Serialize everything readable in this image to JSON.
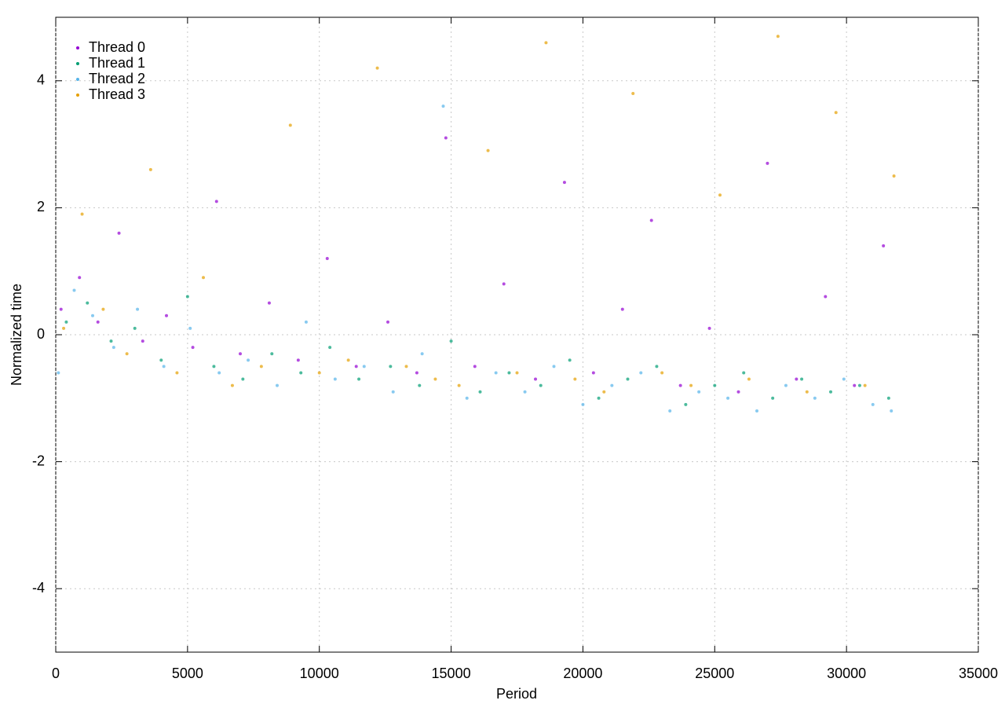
{
  "chart_data": {
    "type": "scatter",
    "x_label": "Period",
    "y_label": "Normalized time",
    "xlim": [
      0,
      35000
    ],
    "xticks": [
      0,
      5000,
      10000,
      15000,
      20000,
      25000,
      30000,
      35000
    ],
    "ylim": [
      -5,
      5
    ],
    "yticks": [
      -4,
      -2,
      0,
      2,
      4
    ],
    "grid": true,
    "legend": "top-left",
    "series": [
      {
        "name": "Thread 0",
        "color": "#9400d3",
        "x": [
          200,
          900,
          1600,
          2400,
          3300,
          4200,
          5200,
          6100,
          7000,
          8100,
          9200,
          10300,
          11400,
          12600,
          13700,
          14800,
          15900,
          17000,
          18200,
          19300,
          20400,
          21500,
          22600,
          23700,
          24800,
          25900,
          27000,
          28100,
          29200,
          30300,
          31400
        ],
        "values": [
          0.4,
          0.9,
          0.2,
          1.6,
          -0.1,
          0.3,
          -0.2,
          2.1,
          -0.3,
          0.5,
          -0.4,
          1.2,
          -0.5,
          0.2,
          -0.6,
          3.1,
          -0.5,
          0.8,
          -0.7,
          2.4,
          -0.6,
          0.4,
          1.8,
          -0.8,
          0.1,
          -0.9,
          2.7,
          -0.7,
          0.6,
          -0.8,
          1.4
        ]
      },
      {
        "name": "Thread 1",
        "color": "#009e73",
        "x": [
          400,
          1200,
          2100,
          3000,
          4000,
          5000,
          6000,
          7100,
          8200,
          9300,
          10400,
          11500,
          12700,
          13800,
          15000,
          16100,
          17200,
          18400,
          19500,
          20600,
          21700,
          22800,
          23900,
          25000,
          26100,
          27200,
          28300,
          29400,
          30500,
          31600
        ],
        "values": [
          0.2,
          0.5,
          -0.1,
          0.1,
          -0.4,
          0.6,
          -0.5,
          -0.7,
          -0.3,
          -0.6,
          -0.2,
          -0.7,
          -0.5,
          -0.8,
          -0.1,
          -0.9,
          -0.6,
          -0.8,
          -0.4,
          -1.0,
          -0.7,
          -0.5,
          -1.1,
          -0.8,
          -0.6,
          -1.0,
          -0.7,
          -0.9,
          -0.8,
          -1.0
        ]
      },
      {
        "name": "Thread 2",
        "color": "#56b4e9",
        "x": [
          100,
          700,
          1400,
          2200,
          3100,
          4100,
          5100,
          6200,
          7300,
          8400,
          9500,
          10600,
          11700,
          12800,
          13900,
          14700,
          15600,
          16700,
          17800,
          18900,
          20000,
          21100,
          22200,
          23300,
          24400,
          25500,
          26600,
          27700,
          28800,
          29900,
          31000,
          31700
        ],
        "values": [
          -0.6,
          0.7,
          0.3,
          -0.2,
          0.4,
          -0.5,
          0.1,
          -0.6,
          -0.4,
          -0.8,
          0.2,
          -0.7,
          -0.5,
          -0.9,
          -0.3,
          3.6,
          -1.0,
          -0.6,
          -0.9,
          -0.5,
          -1.1,
          -0.8,
          -0.6,
          -1.2,
          -0.9,
          -1.0,
          -1.2,
          -0.8,
          -1.0,
          -0.7,
          -1.1,
          -1.2
        ]
      },
      {
        "name": "Thread 3",
        "color": "#e69f00",
        "x": [
          300,
          1000,
          1800,
          2700,
          3600,
          4600,
          5600,
          6700,
          7800,
          8900,
          10000,
          11100,
          12200,
          13300,
          14400,
          15300,
          16400,
          17500,
          18600,
          19700,
          20800,
          21900,
          23000,
          24100,
          25200,
          26300,
          27400,
          28500,
          29600,
          30700,
          31800
        ],
        "values": [
          0.1,
          1.9,
          0.4,
          -0.3,
          2.6,
          -0.6,
          0.9,
          -0.8,
          -0.5,
          3.3,
          -0.6,
          -0.4,
          4.2,
          -0.5,
          -0.7,
          -0.8,
          2.9,
          -0.6,
          4.6,
          -0.7,
          -0.9,
          3.8,
          -0.6,
          -0.8,
          2.2,
          -0.7,
          4.7,
          -0.9,
          3.5,
          -0.8,
          2.5
        ]
      }
    ]
  }
}
